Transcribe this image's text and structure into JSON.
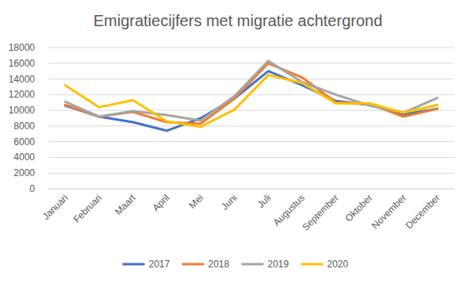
{
  "chart_data": {
    "type": "line",
    "title": "Emigratiecijfers met migratie achtergrond",
    "categories": [
      "Januari",
      "Februari",
      "Maart",
      "April",
      "Mei",
      "Juni",
      "Juli",
      "Augustus",
      "September",
      "Oktober",
      "November",
      "December"
    ],
    "series": [
      {
        "name": "2017",
        "color": "#4472c4",
        "values": [
          10600,
          9200,
          8500,
          7400,
          9000,
          11500,
          15000,
          13200,
          11200,
          10700,
          9500,
          10200
        ]
      },
      {
        "name": "2018",
        "color": "#ed7d31",
        "values": [
          10700,
          9200,
          9800,
          8500,
          8300,
          11500,
          16000,
          14200,
          11000,
          10800,
          9200,
          10200
        ]
      },
      {
        "name": "2019",
        "color": "#a5a5a5",
        "values": [
          11100,
          9200,
          9900,
          9400,
          8700,
          11800,
          16300,
          13600,
          12000,
          10600,
          9700,
          11600
        ]
      },
      {
        "name": "2020",
        "color": "#ffc000",
        "values": [
          13200,
          10400,
          11300,
          8600,
          7900,
          10100,
          14500,
          13500,
          10900,
          10900,
          9700,
          10700
        ]
      }
    ],
    "ylim": [
      0,
      18000
    ],
    "yticks": [
      0,
      2000,
      4000,
      6000,
      8000,
      10000,
      12000,
      14000,
      16000,
      18000
    ],
    "grid": true,
    "legend": "bottom"
  }
}
